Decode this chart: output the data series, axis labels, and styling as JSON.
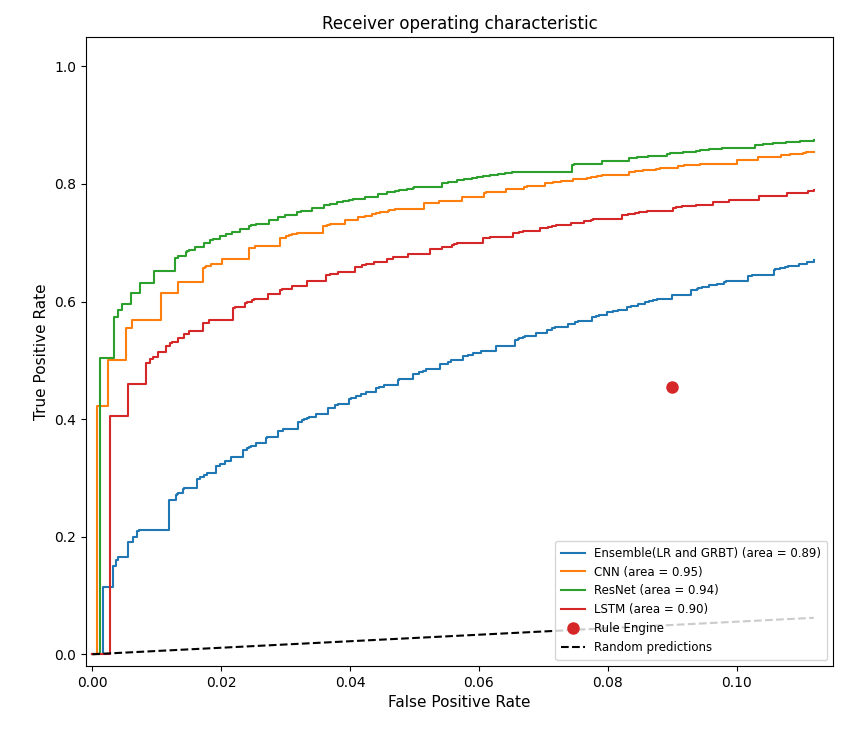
{
  "title": "Receiver operating characteristic",
  "xlabel": "False Positive Rate",
  "ylabel": "True Positive Rate",
  "xlim": [
    -0.001,
    0.115
  ],
  "ylim": [
    -0.02,
    1.05
  ],
  "xticks": [
    0.0,
    0.02,
    0.04,
    0.06,
    0.08,
    0.1
  ],
  "yticks": [
    0.0,
    0.2,
    0.4,
    0.6,
    0.8,
    1.0
  ],
  "legend_labels": [
    "Ensemble(LR and GRBT) (area = 0.89)",
    "CNN (area = 0.95)",
    "ResNet (area = 0.94)",
    "LSTM (area = 0.90)",
    "Rule Engine",
    "Random predictions"
  ],
  "colors": {
    "ensemble": "#1f77b4",
    "cnn": "#ff7f0e",
    "resnet": "#2ca02c",
    "lstm": "#d62728",
    "rule_engine": "#d62728",
    "random": "#000000"
  },
  "rule_engine_point": [
    0.09,
    0.455
  ],
  "random_line": [
    [
      0.0,
      0.0
    ],
    [
      0.112,
      0.062
    ]
  ],
  "figsize": [
    8.59,
    7.4
  ],
  "dpi": 100
}
